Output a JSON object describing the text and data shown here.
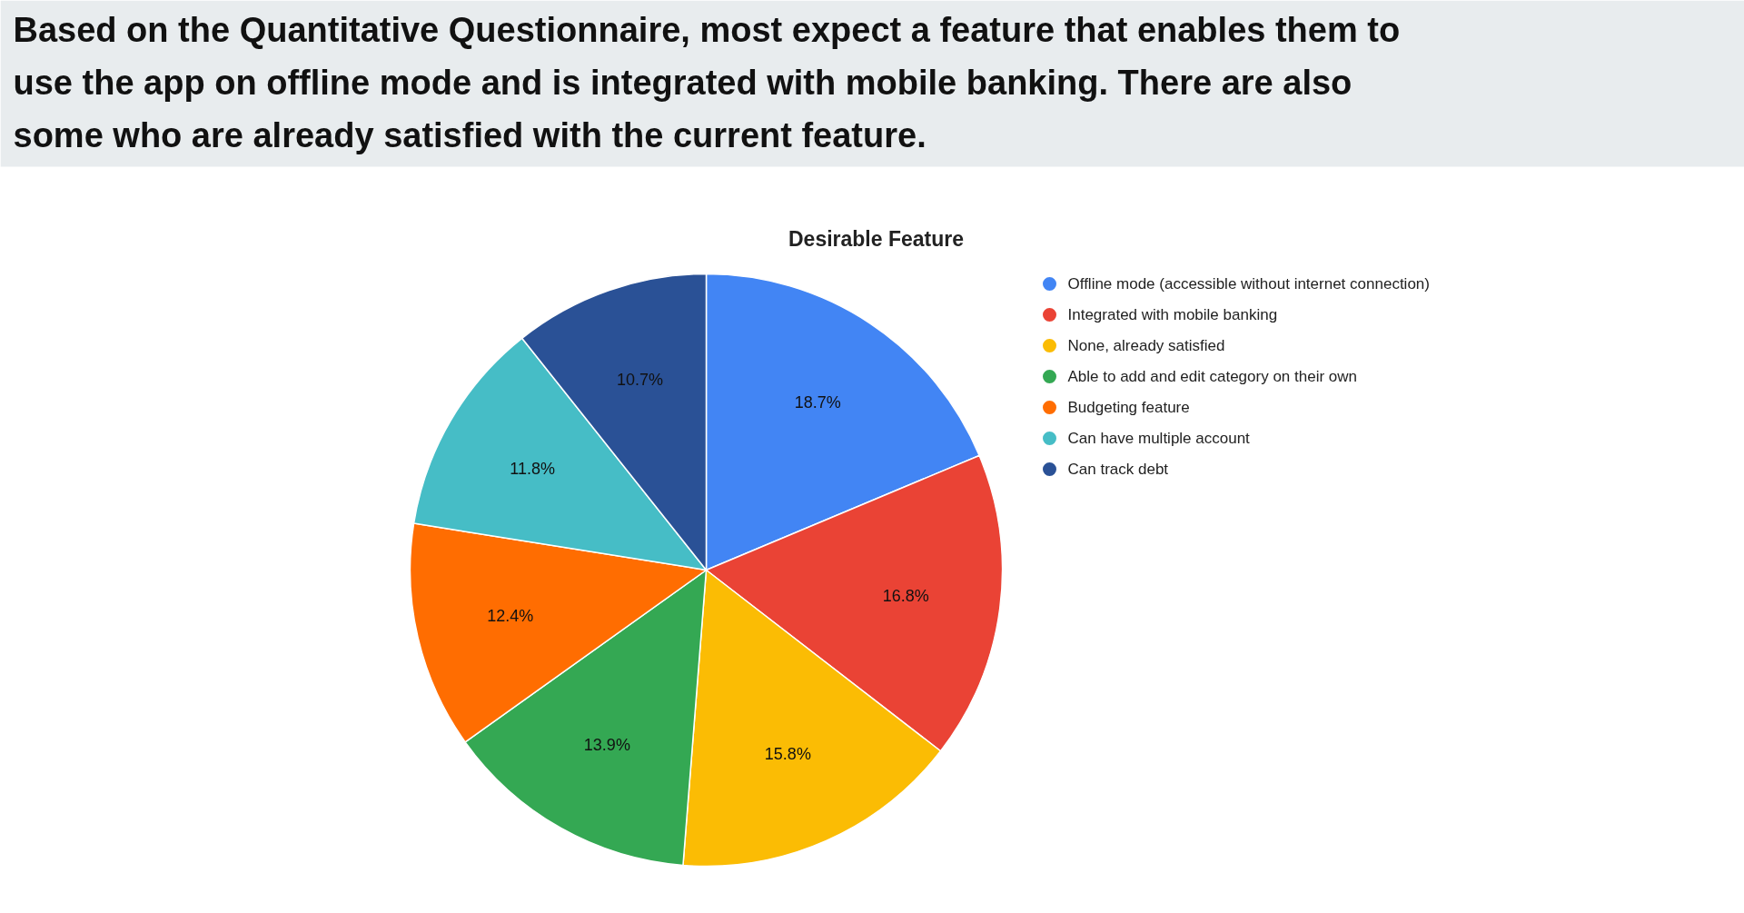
{
  "chart_data": {
    "type": "pie",
    "title": "Desirable Feature",
    "annotations": [
      "Based on the Quantitative Questionnaire, most expect a feature that enables them to use the app on offline mode and is integrated with mobile banking. There are also some who are already satisfied with the current feature."
    ],
    "categories": [
      "Offline mode (accessible without internet connection)",
      "Integrated with mobile banking",
      "None, already satisfied",
      "Able to add and edit category on their own",
      "Budgeting feature",
      "Can have multiple account",
      "Can track debt"
    ],
    "values": [
      18.7,
      16.8,
      15.8,
      13.9,
      12.4,
      11.8,
      10.7
    ],
    "value_labels": [
      "18.7%",
      "16.8%",
      "15.8%",
      "13.9%",
      "12.4%",
      "11.8%",
      "10.7%"
    ],
    "colors": [
      "#4285f4",
      "#ea4335",
      "#fbbc04",
      "#34a853",
      "#ff6d01",
      "#46bdc6",
      "#2a5196"
    ],
    "legend": "right"
  }
}
